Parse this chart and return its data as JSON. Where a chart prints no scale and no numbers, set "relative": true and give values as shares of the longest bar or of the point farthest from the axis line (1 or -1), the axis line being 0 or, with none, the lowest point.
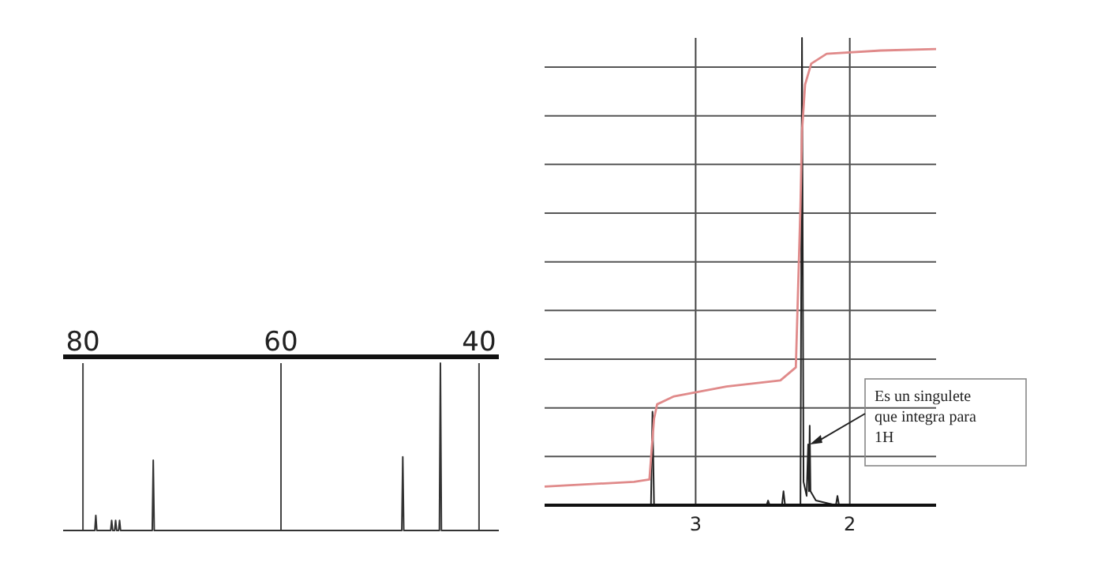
{
  "chart_data": [
    {
      "type": "line",
      "relative": true,
      "xlim": [
        82,
        38
      ],
      "xticks": [
        80,
        60,
        40
      ],
      "grid": "x",
      "series": [
        {
          "color": "#333333",
          "x": [
            82,
            78.8,
            78.7,
            78.6,
            77.2,
            77.1,
            77.0,
            76.8,
            76.7,
            76.6,
            76.4,
            76.3,
            76.2,
            73.0,
            72.9,
            72.8,
            47.8,
            47.7,
            47.6,
            44.0,
            43.9,
            43.8,
            38
          ],
          "values": [
            0,
            0,
            0.09,
            0,
            0,
            0.06,
            0,
            0,
            0.06,
            0,
            0,
            0.06,
            0,
            0,
            0.42,
            0,
            0,
            0.44,
            0,
            0,
            1,
            0,
            0
          ]
        }
      ]
    },
    {
      "type": "line",
      "relative": true,
      "xlim": [
        3.98,
        1.44
      ],
      "xticks": [
        3,
        2
      ],
      "grid": true,
      "annotations": [
        {
          "text": "Es un singulete que integra para 1H",
          "x": 2.27,
          "y": 0.13
        }
      ],
      "series": [
        {
          "color": "#222222",
          "x": [
            3.98,
            3.29,
            3.28,
            3.27,
            2.54,
            2.53,
            2.52,
            2.44,
            2.43,
            2.42,
            2.32,
            2.31,
            2.3,
            2.28,
            2.27,
            2.265,
            2.26,
            2.255,
            2.22,
            2.09,
            2.08,
            2.07,
            1.44
          ],
          "values": [
            0,
            0,
            0.2,
            0,
            0,
            0.01,
            0,
            0,
            0.03,
            0,
            0,
            1,
            0.05,
            0.02,
            0.13,
            0.03,
            0.17,
            0.03,
            0.01,
            0,
            0.02,
            0,
            0
          ]
        },
        {
          "color": "#e08a8a",
          "x": [
            3.98,
            3.4,
            3.3,
            3.27,
            3.25,
            3.14,
            2.8,
            2.45,
            2.35,
            2.32,
            2.31,
            2.29,
            2.25,
            2.15,
            1.8,
            1.44
          ],
          "values": [
            0.04,
            0.05,
            0.055,
            0.185,
            0.216,
            0.233,
            0.254,
            0.267,
            0.295,
            0.64,
            0.8,
            0.9,
            0.945,
            0.966,
            0.973,
            0.976
          ]
        }
      ]
    }
  ]
}
